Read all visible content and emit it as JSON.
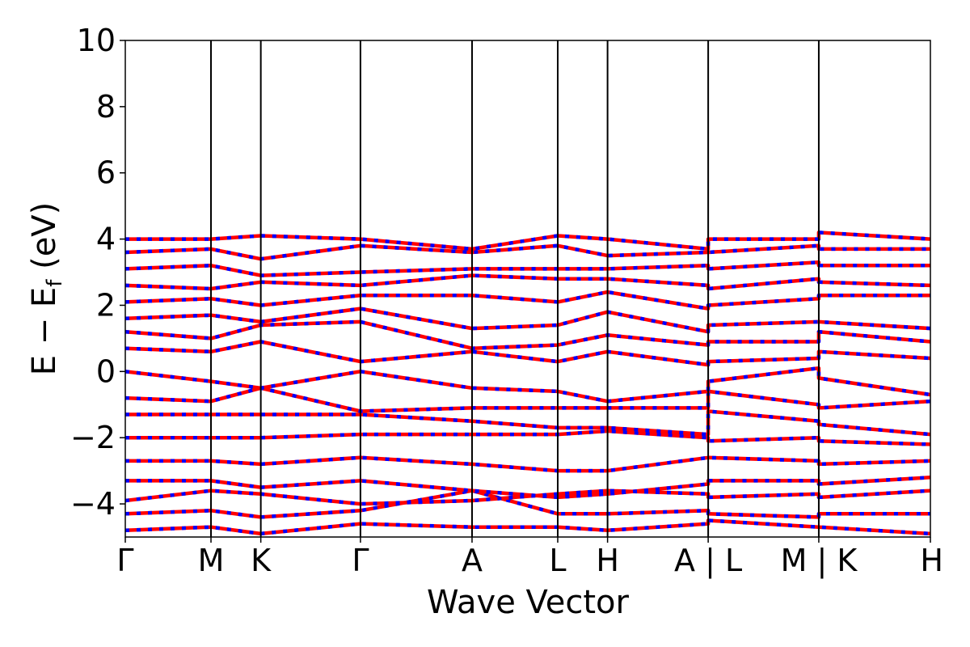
{
  "chart_data": {
    "type": "line",
    "title": "",
    "xlabel": "Wave Vector",
    "ylabel": "E − E",
    "ylabel_sub": "f",
    "ylabel_unit": " (eV)",
    "ylim": [
      -5,
      10
    ],
    "yticks": [
      {
        "value": -4,
        "label": "−4"
      },
      {
        "value": -2,
        "label": "−2"
      },
      {
        "value": 0,
        "label": "0"
      },
      {
        "value": 2,
        "label": "2"
      },
      {
        "value": 4,
        "label": "4"
      },
      {
        "value": 6,
        "label": "6"
      },
      {
        "value": 8,
        "label": "8"
      },
      {
        "value": 10,
        "label": "10"
      }
    ],
    "xlim": [
      0,
      8.08
    ],
    "kpath": [
      {
        "label": "Γ",
        "x": 0.0
      },
      {
        "label": "M",
        "x": 0.86
      },
      {
        "label": "K",
        "x": 1.36
      },
      {
        "label": "Γ",
        "x": 2.36
      },
      {
        "label": "A",
        "x": 3.48
      },
      {
        "label": "L",
        "x": 4.34
      },
      {
        "label": "H",
        "x": 4.84
      },
      {
        "label": "A | L",
        "x": 5.85
      },
      {
        "label": "M | K",
        "x": 6.96
      },
      {
        "label": "H",
        "x": 8.08
      }
    ],
    "grid": false,
    "legend": "none",
    "series_style": {
      "colors": [
        "#ff0000",
        "#0000ff"
      ],
      "dash": "dashed overlay"
    },
    "series": [
      {
        "x": [
          0.0,
          0.86,
          1.36,
          2.36,
          3.48,
          4.34,
          4.84,
          5.85,
          5.85,
          6.96,
          6.96,
          8.08
        ],
        "values": [
          -4.8,
          -4.7,
          -4.9,
          -4.6,
          -4.7,
          -4.7,
          -4.8,
          -4.6,
          -4.5,
          -4.7,
          -4.7,
          -4.9
        ]
      },
      {
        "x": [
          0.0,
          0.86,
          1.36,
          2.36,
          3.48,
          4.34,
          4.84,
          5.85,
          5.85,
          6.96,
          6.96,
          8.08
        ],
        "values": [
          -4.3,
          -4.2,
          -4.4,
          -4.2,
          -3.6,
          -4.3,
          -4.3,
          -4.2,
          -4.3,
          -4.4,
          -4.3,
          -4.3
        ]
      },
      {
        "x": [
          0.0,
          0.86,
          1.36,
          2.36,
          3.48,
          4.34,
          4.84,
          5.85,
          5.85,
          6.96,
          6.96,
          8.08
        ],
        "values": [
          -3.9,
          -3.6,
          -3.7,
          -4.0,
          -3.9,
          -3.7,
          -3.6,
          -3.7,
          -3.8,
          -3.7,
          -3.8,
          -3.6
        ]
      },
      {
        "x": [
          0.0,
          0.86,
          1.36,
          2.36,
          3.48,
          4.34,
          4.84,
          5.85,
          5.85,
          6.96,
          6.96,
          8.08
        ],
        "values": [
          -3.3,
          -3.3,
          -3.5,
          -3.3,
          -3.6,
          -3.8,
          -3.7,
          -3.4,
          -3.3,
          -3.3,
          -3.4,
          -3.2
        ]
      },
      {
        "x": [
          0.0,
          0.86,
          1.36,
          2.36,
          3.48,
          4.34,
          4.84,
          5.85,
          5.85,
          6.96,
          6.96,
          8.08
        ],
        "values": [
          -2.7,
          -2.7,
          -2.8,
          -2.6,
          -2.8,
          -3.0,
          -3.0,
          -2.6,
          -2.6,
          -2.7,
          -2.8,
          -2.7
        ]
      },
      {
        "x": [
          0.0,
          0.86,
          1.36,
          2.36,
          3.48,
          4.34,
          4.84,
          5.85,
          5.85,
          6.96,
          6.96,
          8.08
        ],
        "values": [
          -2.0,
          -2.0,
          -2.0,
          -1.9,
          -1.9,
          -1.9,
          -1.8,
          -2.0,
          -2.1,
          -2.0,
          -2.1,
          -2.2
        ]
      },
      {
        "x": [
          0.0,
          0.86,
          1.36,
          2.36,
          3.48,
          4.34,
          4.84,
          5.85,
          5.85,
          6.96,
          6.96,
          8.08
        ],
        "values": [
          -1.3,
          -1.3,
          -1.3,
          -1.3,
          -1.5,
          -1.7,
          -1.7,
          -1.9,
          -1.2,
          -1.5,
          -1.6,
          -1.9
        ]
      },
      {
        "x": [
          0.0,
          0.86,
          1.36,
          2.36,
          3.48,
          4.34,
          4.84,
          5.85,
          5.85,
          6.96,
          6.96,
          8.08
        ],
        "values": [
          -0.8,
          -0.9,
          -0.5,
          -1.2,
          -1.1,
          -1.1,
          -1.1,
          -1.1,
          -0.6,
          -1.0,
          -1.1,
          -0.9
        ]
      },
      {
        "x": [
          0.0,
          0.86,
          1.36,
          2.36,
          3.48,
          4.34,
          4.84,
          5.85,
          5.85,
          6.96,
          6.96,
          8.08
        ],
        "values": [
          0.0,
          -0.3,
          -0.5,
          0.0,
          -0.5,
          -0.6,
          -0.9,
          -0.6,
          -0.3,
          0.1,
          -0.2,
          -0.7
        ]
      },
      {
        "x": [
          0.0,
          0.86,
          1.36,
          2.36,
          3.48,
          4.34,
          4.84,
          5.85,
          5.85,
          6.96,
          6.96,
          8.08
        ],
        "values": [
          0.7,
          0.6,
          0.9,
          0.3,
          0.6,
          0.3,
          0.6,
          0.2,
          0.3,
          0.4,
          0.6,
          0.4
        ]
      },
      {
        "x": [
          0.0,
          0.86,
          1.36,
          2.36,
          3.48,
          4.34,
          4.84,
          5.85,
          5.85,
          6.96,
          6.96,
          8.08
        ],
        "values": [
          1.2,
          1.0,
          1.4,
          1.5,
          0.7,
          0.8,
          1.1,
          0.8,
          0.9,
          0.9,
          1.2,
          0.9
        ]
      },
      {
        "x": [
          0.0,
          0.86,
          1.36,
          2.36,
          3.48,
          4.34,
          4.84,
          5.85,
          5.85,
          6.96,
          6.96,
          8.08
        ],
        "values": [
          1.6,
          1.7,
          1.5,
          1.9,
          1.3,
          1.4,
          1.8,
          1.2,
          1.4,
          1.5,
          1.5,
          1.3
        ]
      },
      {
        "x": [
          0.0,
          0.86,
          1.36,
          2.36,
          3.48,
          4.34,
          4.84,
          5.85,
          5.85,
          6.96,
          6.96,
          8.08
        ],
        "values": [
          2.1,
          2.2,
          2.0,
          2.3,
          2.3,
          2.1,
          2.4,
          1.9,
          2.0,
          2.2,
          2.3,
          2.3
        ]
      },
      {
        "x": [
          0.0,
          0.86,
          1.36,
          2.36,
          3.48,
          4.34,
          4.84,
          5.85,
          5.85,
          6.96,
          6.96,
          8.08
        ],
        "values": [
          2.6,
          2.5,
          2.7,
          2.6,
          2.9,
          2.8,
          2.8,
          2.6,
          2.5,
          2.8,
          2.7,
          2.6
        ]
      },
      {
        "x": [
          0.0,
          0.86,
          1.36,
          2.36,
          3.48,
          4.34,
          4.84,
          5.85,
          5.85,
          6.96,
          6.96,
          8.08
        ],
        "values": [
          3.1,
          3.2,
          2.9,
          3.0,
          3.1,
          3.1,
          3.1,
          3.2,
          3.1,
          3.3,
          3.2,
          3.2
        ]
      },
      {
        "x": [
          0.0,
          0.86,
          1.36,
          2.36,
          3.48,
          4.34,
          4.84,
          5.85,
          5.85,
          6.96,
          6.96,
          8.08
        ],
        "values": [
          3.6,
          3.7,
          3.4,
          3.8,
          3.6,
          3.8,
          3.5,
          3.6,
          3.6,
          3.8,
          3.7,
          3.7
        ]
      },
      {
        "x": [
          0.0,
          0.86,
          1.36,
          2.36,
          3.48,
          4.34,
          4.84,
          5.85,
          5.85,
          6.96,
          6.96,
          8.08
        ],
        "values": [
          4.0,
          4.0,
          4.1,
          4.0,
          3.7,
          4.1,
          4.0,
          3.7,
          4.0,
          4.0,
          4.2,
          4.0
        ]
      }
    ]
  }
}
